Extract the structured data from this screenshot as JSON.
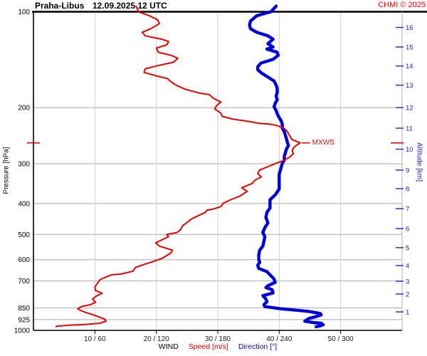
{
  "header": {
    "station": "Praha-Libus",
    "datetime": "12.09.2025 12 UTC",
    "copyright": "CHMI © 2025"
  },
  "colors": {
    "speed_curve": "#e80000",
    "direction_curve": "#0000dd",
    "copyright_red": "#ff0000",
    "altitude_blue": "#2222cc",
    "grid_horizontal": "#a8a8a8",
    "grid_vertical": "#cfcfcf",
    "axis_black": "#000000"
  },
  "axes": {
    "pressure": {
      "label": "Pressure [hPa]",
      "units": "hPa",
      "scale": "log",
      "ticks": [
        100,
        200,
        300,
        400,
        500,
        600,
        700,
        850,
        925,
        1000
      ]
    },
    "altitude": {
      "label": "Altitude [km]",
      "units": "km",
      "ticks": [
        {
          "km": 16,
          "hpa": 112
        },
        {
          "km": 15,
          "hpa": 129
        },
        {
          "km": 14,
          "hpa": 148
        },
        {
          "km": 13,
          "hpa": 170
        },
        {
          "km": 12,
          "hpa": 200
        },
        {
          "km": 11,
          "hpa": 232
        },
        {
          "km": 10,
          "hpa": 270
        },
        {
          "km": 9,
          "hpa": 314
        },
        {
          "km": 8,
          "hpa": 359
        },
        {
          "km": 7,
          "hpa": 415
        },
        {
          "km": 6,
          "hpa": 479
        },
        {
          "km": 5,
          "hpa": 550
        },
        {
          "km": 4,
          "hpa": 626
        },
        {
          "km": 3,
          "hpa": 701
        },
        {
          "km": 2,
          "hpa": 769
        },
        {
          "km": 1,
          "hpa": 875
        }
      ]
    },
    "x": {
      "speed_range": [
        0,
        60
      ],
      "direction_range": [
        0,
        360
      ],
      "ticks": [
        {
          "label": "10 / 60",
          "speed": 10,
          "direction": 60
        },
        {
          "label": "20 / 120",
          "speed": 20,
          "direction": 120
        },
        {
          "label": "30 / 180",
          "speed": 30,
          "direction": 180
        },
        {
          "label": "40 / 240",
          "speed": 40,
          "direction": 240
        },
        {
          "label": "50 / 300",
          "speed": 50,
          "direction": 300
        }
      ]
    }
  },
  "legend": {
    "wind": "WIND",
    "speed": "Speed [m/s]",
    "direction": "Direction [°]"
  },
  "mxws": {
    "label": "MXWS",
    "pressure_hpa": 258,
    "speed_ms": 43.4
  },
  "chart_data": {
    "type": "line",
    "title": "Praha-Libus 12.09.2025 12 UTC — vertical wind profile",
    "y_axis": {
      "label": "Pressure [hPa]",
      "scale": "log",
      "range": [
        100,
        1000
      ],
      "inverted": true
    },
    "x_axis": {
      "label": "WIND Speed [m/s] Direction [°]",
      "speed_range_ms": [
        0,
        60
      ],
      "direction_range_deg": [
        0,
        360
      ]
    },
    "legend_position": "bottom",
    "grid": true,
    "annotations": [
      {
        "label": "MXWS",
        "pressure_hpa": 258,
        "speed_ms": 43.4
      }
    ],
    "series": [
      {
        "name": "Wind speed",
        "units": "m/s",
        "color": "#e80000",
        "x_key": "speed",
        "points": [
          [
            96,
            16.7
          ],
          [
            100,
            17.1
          ],
          [
            103,
            18.9
          ],
          [
            106,
            20.2
          ],
          [
            109,
            20.5
          ],
          [
            113,
            19.1
          ],
          [
            116,
            17.7
          ],
          [
            119,
            18.2
          ],
          [
            122,
            20.9
          ],
          [
            124,
            22
          ],
          [
            127,
            21.7
          ],
          [
            130,
            20
          ],
          [
            134,
            20.3
          ],
          [
            137,
            22.4
          ],
          [
            140,
            23.5
          ],
          [
            144,
            22.8
          ],
          [
            148,
            20
          ],
          [
            151,
            18.2
          ],
          [
            155,
            18
          ],
          [
            159,
            20
          ],
          [
            162,
            21.8
          ],
          [
            166,
            22.4
          ],
          [
            170,
            23.2
          ],
          [
            175,
            24.7
          ],
          [
            180,
            27
          ],
          [
            182,
            28.6
          ],
          [
            187,
            29.3
          ],
          [
            192,
            30.5
          ],
          [
            197,
            29.8
          ],
          [
            202,
            29.5
          ],
          [
            208,
            30.5
          ],
          [
            213,
            30.7
          ],
          [
            217,
            32.4
          ],
          [
            219,
            33.6
          ],
          [
            221,
            35.1
          ],
          [
            224,
            36.7
          ],
          [
            225,
            38.2
          ],
          [
            227,
            39.4
          ],
          [
            230,
            40.3
          ],
          [
            233,
            40.9
          ],
          [
            239,
            41.4
          ],
          [
            245,
            41.7
          ],
          [
            252,
            42.1
          ],
          [
            258,
            43.4
          ],
          [
            265,
            42.5
          ],
          [
            272,
            42.1
          ],
          [
            279,
            42.3
          ],
          [
            286,
            41.7
          ],
          [
            294,
            40.5
          ],
          [
            298,
            39.7
          ],
          [
            306,
            38.2
          ],
          [
            314,
            36.8
          ],
          [
            322,
            36.5
          ],
          [
            330,
            37.1
          ],
          [
            337,
            36.1
          ],
          [
            346,
            35.6
          ],
          [
            357,
            33.9
          ],
          [
            366,
            34.8
          ],
          [
            379,
            33.6
          ],
          [
            389,
            32.1
          ],
          [
            399,
            30.9
          ],
          [
            409,
            30.5
          ],
          [
            416,
            29.3
          ],
          [
            420,
            28.2
          ],
          [
            426,
            28
          ],
          [
            435,
            27
          ],
          [
            446,
            25.8
          ],
          [
            457,
            25.1
          ],
          [
            469,
            24.3
          ],
          [
            481,
            24
          ],
          [
            493,
            23.4
          ],
          [
            500,
            21.7
          ],
          [
            508,
            22
          ],
          [
            531,
            19.9
          ],
          [
            544,
            20.5
          ],
          [
            560,
            22.6
          ],
          [
            571,
            22.4
          ],
          [
            595,
            20.9
          ],
          [
            604,
            19.9
          ],
          [
            610,
            19.3
          ],
          [
            619,
            18.2
          ],
          [
            635,
            16.6
          ],
          [
            652,
            16.2
          ],
          [
            666,
            14.2
          ],
          [
            669,
            12.7
          ],
          [
            683,
            11.6
          ],
          [
            694,
            10.8
          ],
          [
            712,
            10.4
          ],
          [
            731,
            10
          ],
          [
            750,
            10.1
          ],
          [
            765,
            11.2
          ],
          [
            781,
            10.2
          ],
          [
            797,
            9.6
          ],
          [
            817,
            10.1
          ],
          [
            830,
            9.3
          ],
          [
            842,
            7.8
          ],
          [
            855,
            7.2
          ],
          [
            868,
            7.8
          ],
          [
            881,
            8.7
          ],
          [
            899,
            10.1
          ],
          [
            922,
            11.6
          ],
          [
            936,
            11.8
          ],
          [
            950,
            10.8
          ],
          [
            958,
            8.5
          ],
          [
            963,
            5.8
          ],
          [
            970,
            3.8
          ],
          [
            974,
            3.7
          ]
        ]
      },
      {
        "name": "Wind direction",
        "units": "°",
        "color": "#0000dd",
        "x_key": "direction",
        "points": [
          [
            96,
            237
          ],
          [
            100,
            232
          ],
          [
            101,
            227
          ],
          [
            103,
            218
          ],
          [
            107,
            212
          ],
          [
            110,
            211
          ],
          [
            113,
            212
          ],
          [
            116,
            218
          ],
          [
            119,
            229
          ],
          [
            122,
            234
          ],
          [
            126,
            229
          ],
          [
            129,
            234
          ],
          [
            131,
            228
          ],
          [
            134,
            238
          ],
          [
            137,
            239
          ],
          [
            141,
            234
          ],
          [
            145,
            222
          ],
          [
            149,
            219
          ],
          [
            152,
            219
          ],
          [
            156,
            223
          ],
          [
            161,
            230
          ],
          [
            165,
            235
          ],
          [
            170,
            237
          ],
          [
            174,
            238
          ],
          [
            179,
            238
          ],
          [
            184,
            237
          ],
          [
            189,
            238
          ],
          [
            194,
            236
          ],
          [
            199,
            235
          ],
          [
            204,
            237
          ],
          [
            209,
            238
          ],
          [
            215,
            240
          ],
          [
            220,
            242
          ],
          [
            226,
            243
          ],
          [
            232,
            243
          ],
          [
            238,
            245
          ],
          [
            244,
            246
          ],
          [
            250,
            247
          ],
          [
            257,
            248
          ],
          [
            263,
            249
          ],
          [
            270,
            247
          ],
          [
            277,
            246
          ],
          [
            284,
            245
          ],
          [
            292,
            245
          ],
          [
            299,
            243
          ],
          [
            307,
            242
          ],
          [
            315,
            241
          ],
          [
            323,
            240
          ],
          [
            331,
            240
          ],
          [
            346,
            240
          ],
          [
            360,
            240
          ],
          [
            376,
            236
          ],
          [
            389,
            231
          ],
          [
            403,
            231
          ],
          [
            413,
            231
          ],
          [
            426,
            228
          ],
          [
            442,
            227
          ],
          [
            460,
            229
          ],
          [
            476,
            226
          ],
          [
            493,
            224
          ],
          [
            508,
            226
          ],
          [
            526,
            225
          ],
          [
            544,
            224
          ],
          [
            560,
            221
          ],
          [
            578,
            220
          ],
          [
            600,
            220
          ],
          [
            611,
            221
          ],
          [
            625,
            219
          ],
          [
            639,
            220
          ],
          [
            654,
            228
          ],
          [
            690,
            235
          ],
          [
            707,
            236
          ],
          [
            724,
            229
          ],
          [
            734,
            227
          ],
          [
            745,
            233
          ],
          [
            763,
            234
          ],
          [
            778,
            224
          ],
          [
            797,
            227
          ],
          [
            813,
            228
          ],
          [
            830,
            225
          ],
          [
            842,
            226
          ],
          [
            855,
            241
          ],
          [
            863,
            255
          ],
          [
            872,
            269
          ],
          [
            885,
            280
          ],
          [
            894,
            281
          ],
          [
            903,
            277
          ],
          [
            917,
            269
          ],
          [
            936,
            265
          ],
          [
            945,
            273
          ],
          [
            950,
            281
          ],
          [
            960,
            283
          ],
          [
            970,
            279
          ],
          [
            974,
            276
          ]
        ]
      }
    ]
  }
}
